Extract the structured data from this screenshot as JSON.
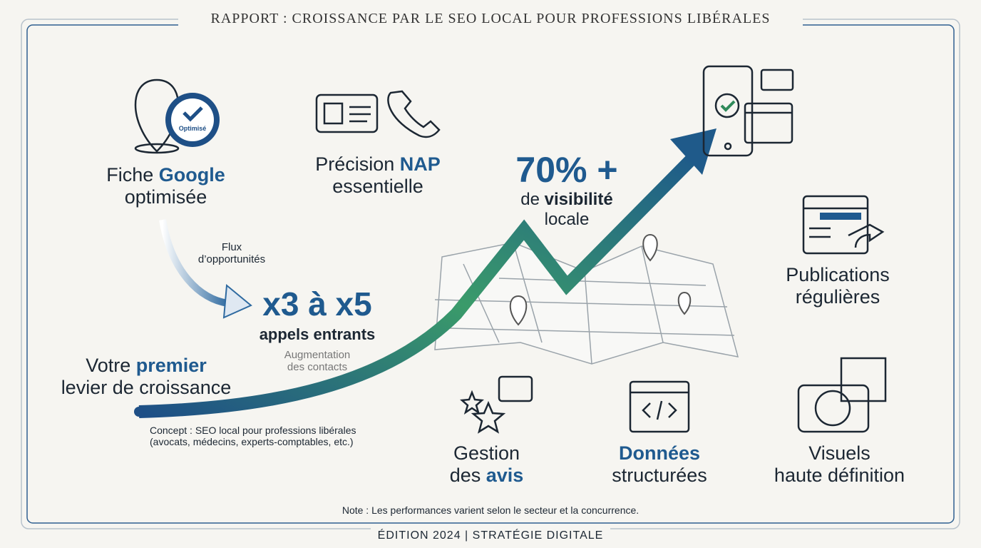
{
  "header": {
    "title": "RAPPORT : CROISSANCE PAR LE SEO LOCAL POUR PROFESSIONS LIBÉRALES"
  },
  "google_card": {
    "badge": "Optimisé",
    "line1_plain": "Fiche ",
    "line1_highlight": "Google",
    "line2": "optimisée"
  },
  "nap": {
    "line1_plain": "Précision ",
    "line1_highlight": "NAP",
    "line2": "essentielle"
  },
  "flow": {
    "line1": "Flux",
    "line2": "d’opportunités"
  },
  "calls": {
    "headline": "x3 à x5",
    "subtitle": "appels entrants",
    "note_line1": "Augmentation",
    "note_line2": "des contacts"
  },
  "lever": {
    "line1_plain": "Votre ",
    "line1_highlight": "premier",
    "line2": "levier de croissance"
  },
  "concept": {
    "line1": "Concept : SEO local pour professions libérales",
    "line2": "(avocats, médecins, experts-comptables, etc.)"
  },
  "visibility": {
    "headline": "70% +",
    "line1_plain": "de ",
    "line1_highlight": "visibilité",
    "line2": "locale"
  },
  "publications": {
    "line1": "Publications",
    "line2": "régulières"
  },
  "reviews": {
    "line1": "Gestion",
    "line2_plain": "des ",
    "line2_highlight": "avis"
  },
  "structured_data": {
    "line1": "Données",
    "line2": "structurées"
  },
  "visuals": {
    "line1": "Visuels",
    "line2": "haute définition"
  },
  "note": "Note : Les performances varient selon le secteur et la concurrence.",
  "footer": "ÉDITION 2024 | STRATÉGIE DIGITALE"
}
